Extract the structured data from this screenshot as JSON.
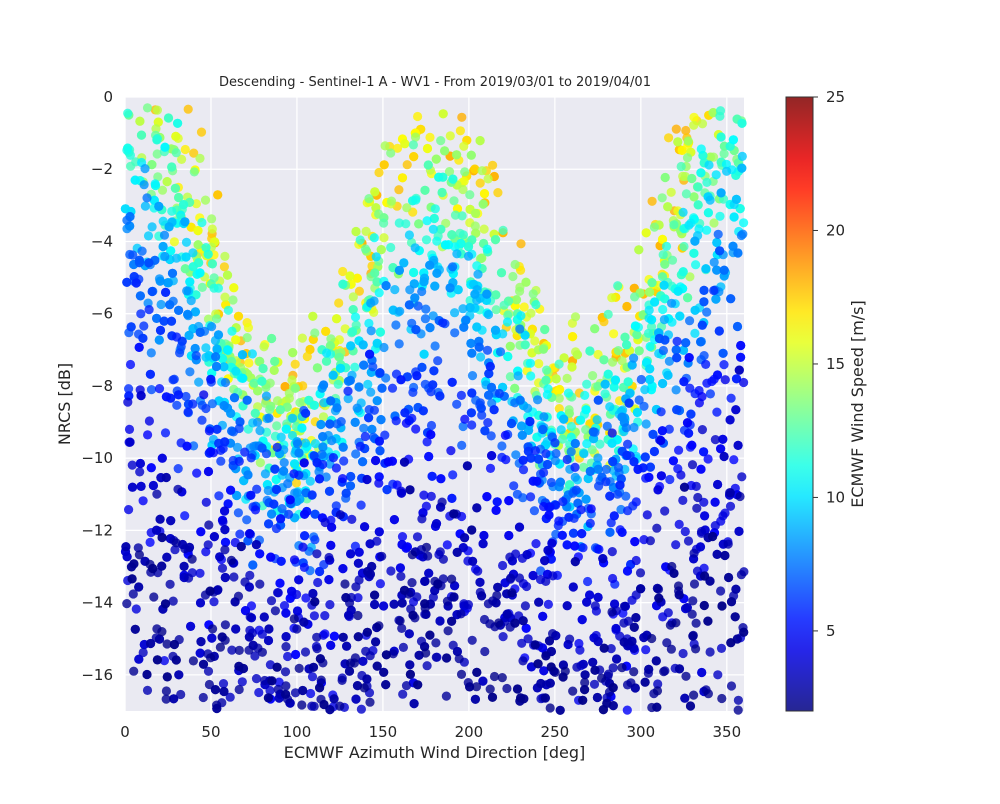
{
  "chart_data": {
    "type": "scatter",
    "title": "Descending - Sentinel-1 A - WV1 - From 2019/03/01 to 2019/04/01",
    "xlabel": "ECMWF Azimuth Wind Direction [deg]",
    "ylabel": "NRCS [dB]",
    "xlim": [
      0,
      360
    ],
    "ylim": [
      -17,
      0
    ],
    "xticks": [
      "0",
      "50",
      "100",
      "150",
      "200",
      "250",
      "300",
      "350"
    ],
    "yticks": [
      "0",
      "−2",
      "−4",
      "−6",
      "−8",
      "−10",
      "−12",
      "−14",
      "−16"
    ],
    "grid": true,
    "background": "#eaeaf2",
    "colorbar": {
      "label": "ECMWF Wind Speed [m/s]",
      "range": [
        2,
        25
      ],
      "ticks": [
        "5",
        "10",
        "15",
        "20",
        "25"
      ],
      "colormap": "jet"
    },
    "point_count": 4200,
    "point_alpha": 0.8,
    "model": {
      "description": "Points follow the NRCS upwind/downwind modulation; higher wind speed gives higher NRCS",
      "peaks_deg": [
        0,
        180,
        360
      ],
      "minima_deg": [
        90,
        270
      ]
    }
  }
}
